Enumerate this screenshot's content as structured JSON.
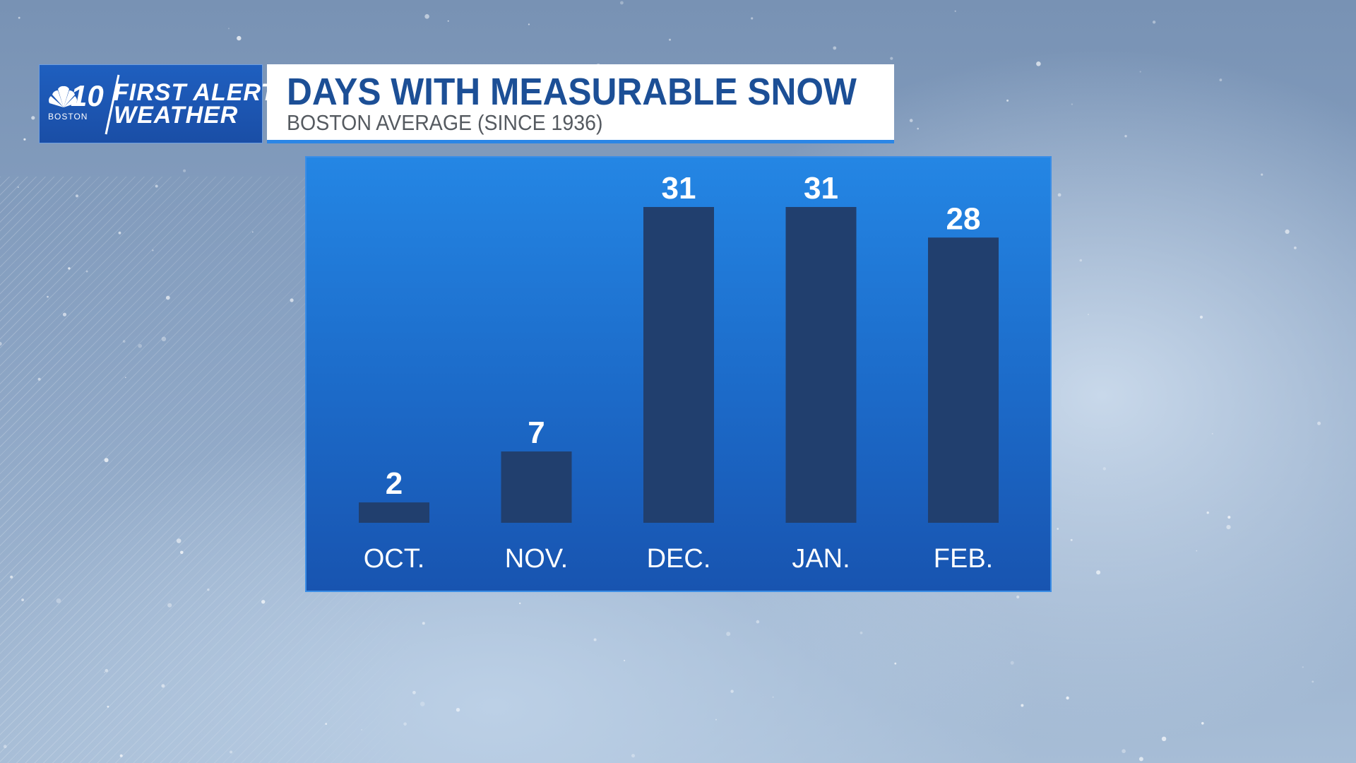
{
  "header": {
    "brand_number": "10",
    "brand_city": "BOSTON",
    "brand_line1": "FIRST ALERT",
    "brand_line2": "WEATHER",
    "title": "DAYS WITH MEASURABLE SNOW",
    "subtitle": "BOSTON AVERAGE (SINCE 1936)"
  },
  "colors": {
    "bar": "#213f6e",
    "panel_top": "#2486e4",
    "panel_bottom": "#1854b0",
    "title_text": "#1c4f96",
    "accent": "#2b86e6"
  },
  "chart_data": {
    "type": "bar",
    "title": "DAYS WITH MEASURABLE SNOW",
    "subtitle": "BOSTON AVERAGE (SINCE 1936)",
    "categories": [
      "OCT.",
      "NOV.",
      "DEC.",
      "JAN.",
      "FEB."
    ],
    "values": [
      2,
      7,
      31,
      31,
      28
    ],
    "data_labels": [
      "2",
      "7",
      "31",
      "31",
      "28"
    ],
    "xlabel": "",
    "ylabel": "",
    "ylim": [
      0,
      31
    ],
    "grid": false,
    "legend": "none"
  }
}
